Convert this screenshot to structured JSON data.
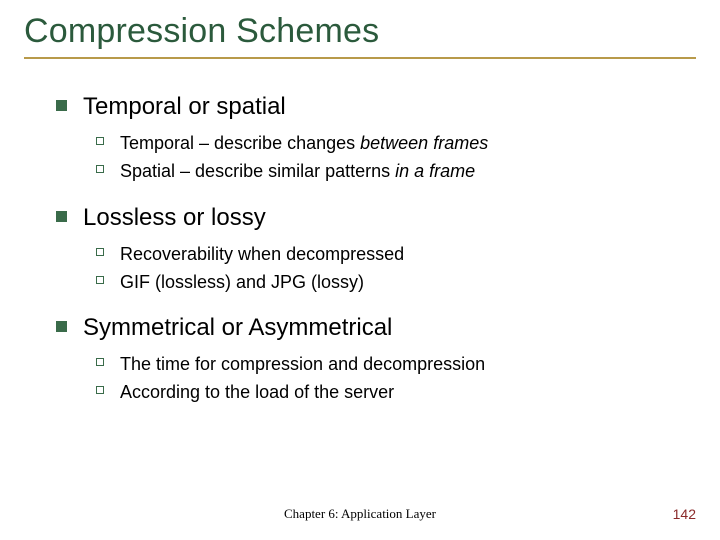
{
  "colors": {
    "title": "#2b5a3c",
    "title_underline": "#b89a4a",
    "body_text": "#000000",
    "l1_bullet": "#3a6b4a",
    "l2_bullet_border": "#3a6b4a",
    "footer": "#000000",
    "page_number": "#8a2a2a",
    "background": "#ffffff"
  },
  "typography": {
    "title_fontsize": 34,
    "l1_fontsize": 24,
    "l2_fontsize": 18,
    "footer_fontsize": 13,
    "pagenum_fontsize": 14
  },
  "title": "Compression Schemes",
  "sections": [
    {
      "heading": "Temporal or spatial",
      "items": [
        {
          "pre": "Temporal – describe changes ",
          "ital": "between frames",
          "post": ""
        },
        {
          "pre": "Spatial – describe similar patterns ",
          "ital": "in a frame",
          "post": ""
        }
      ]
    },
    {
      "heading": "Lossless or lossy",
      "items": [
        {
          "pre": "Recoverability when decompressed",
          "ital": "",
          "post": ""
        },
        {
          "pre": "GIF (lossless) and JPG (lossy)",
          "ital": "",
          "post": ""
        }
      ]
    },
    {
      "heading": "Symmetrical or Asymmetrical",
      "items": [
        {
          "pre": "The time for compression and decompression",
          "ital": "",
          "post": ""
        },
        {
          "pre": "According to the load of the server",
          "ital": "",
          "post": ""
        }
      ]
    }
  ],
  "footer": {
    "center": "Chapter 6: Application Layer",
    "page_number": "142"
  }
}
